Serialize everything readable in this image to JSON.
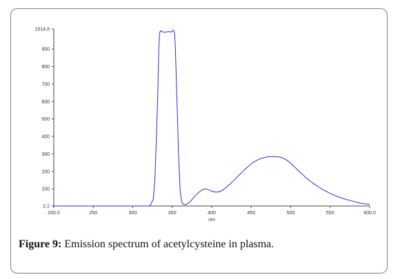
{
  "chart_data": {
    "type": "line",
    "title": "",
    "xlabel": "nm",
    "ylabel": "",
    "xlim": [
      200.0,
      600.0
    ],
    "ylim": [
      2.2,
      1014.8
    ],
    "x_ticks": [
      200,
      250,
      300,
      350,
      400,
      450,
      500,
      550,
      600
    ],
    "x_tick_labels": [
      "200.0",
      "250",
      "300",
      "350",
      "400",
      "450",
      "500",
      "550",
      "600.0"
    ],
    "y_ticks": [
      2.2,
      100,
      200,
      300,
      400,
      500,
      600,
      700,
      800,
      900,
      1014.8
    ],
    "y_tick_labels": [
      "2.2",
      "100",
      "200",
      "300",
      "400",
      "500",
      "600",
      "700",
      "800",
      "900",
      "1014.8"
    ],
    "grid": false,
    "line_color": "#2a2ad0",
    "series": [
      {
        "x": [
          200,
          320,
          322,
          326,
          328,
          330,
          332,
          333,
          334,
          335,
          337,
          340,
          343,
          346,
          349,
          351,
          352,
          353,
          354,
          356,
          358,
          360,
          362,
          364,
          366,
          368,
          370,
          373,
          376,
          380,
          384,
          388,
          392,
          396,
          400,
          404,
          408,
          412,
          416,
          420,
          425,
          430,
          435,
          440,
          445,
          450,
          455,
          460,
          465,
          470,
          475,
          480,
          485,
          490,
          495,
          500,
          505,
          510,
          515,
          520,
          525,
          530,
          535,
          540,
          545,
          550,
          555,
          560,
          565,
          570,
          575,
          580,
          585,
          590,
          595,
          600
        ],
        "y": [
          2.2,
          2.2,
          5,
          40,
          150,
          400,
          700,
          900,
          990,
          1005,
          1000,
          995,
          998,
          1000,
          997,
          1008,
          1005,
          990,
          900,
          600,
          300,
          90,
          25,
          12,
          10,
          12,
          17,
          28,
          45,
          65,
          82,
          95,
          100,
          95,
          87,
          82,
          82,
          88,
          100,
          115,
          135,
          158,
          180,
          203,
          224,
          243,
          258,
          270,
          277,
          283,
          285,
          285,
          283,
          277,
          265,
          247,
          225,
          203,
          182,
          162,
          143,
          127,
          112,
          98,
          86,
          74,
          64,
          55,
          47,
          40,
          34,
          28,
          22,
          17,
          14,
          12
        ]
      }
    ]
  },
  "caption": {
    "label": "Figure 9:",
    "text": " Emission spectrum of acetylcysteine in plasma."
  }
}
